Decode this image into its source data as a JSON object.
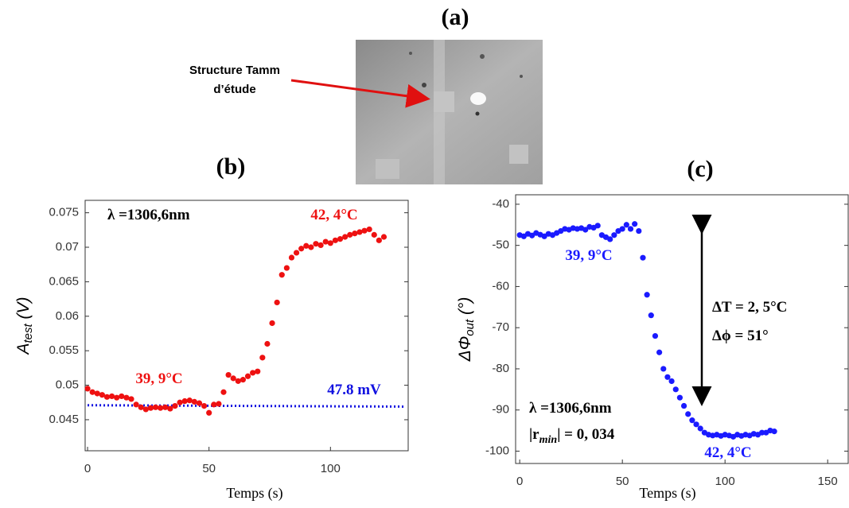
{
  "panel_a": {
    "label": "(a)",
    "caption_lines": [
      "Structure Tamm",
      "d’étude"
    ]
  },
  "chart_data": [
    {
      "type": "scatter",
      "title": "(b)",
      "y_label": {
        "symbol": "A",
        "subscript": "test",
        "unit": " (V)"
      },
      "x_label": "Temps (s)",
      "xlim": [
        -1,
        132
      ],
      "xticks": [
        0,
        50,
        100
      ],
      "ylim": [
        0.0405,
        0.0768
      ],
      "yticks": [
        0.045,
        0.05,
        0.055,
        0.06,
        0.065,
        0.07,
        0.075
      ],
      "series": [
        {
          "color": "#ee1111",
          "x": [
            0,
            2,
            4,
            6,
            8,
            10,
            12,
            14,
            16,
            18,
            20,
            22,
            24,
            26,
            28,
            30,
            32,
            34,
            36,
            38,
            40,
            42,
            44,
            46,
            48,
            50,
            52,
            54,
            56,
            58,
            60,
            62,
            64,
            66,
            68,
            70,
            72,
            74,
            76,
            78,
            80,
            82,
            84,
            86,
            88,
            90,
            92,
            94,
            96,
            98,
            100,
            102,
            104,
            106,
            108,
            110,
            112,
            114,
            116,
            118,
            120,
            122
          ],
          "values": [
            0.0495,
            0.049,
            0.0488,
            0.0486,
            0.0483,
            0.0484,
            0.0482,
            0.0484,
            0.0482,
            0.048,
            0.0472,
            0.0468,
            0.0465,
            0.0467,
            0.0468,
            0.0467,
            0.0468,
            0.0466,
            0.047,
            0.0475,
            0.0477,
            0.0478,
            0.0476,
            0.0474,
            0.047,
            0.046,
            0.0472,
            0.0473,
            0.049,
            0.0515,
            0.051,
            0.0506,
            0.0508,
            0.0513,
            0.0518,
            0.052,
            0.054,
            0.056,
            0.059,
            0.062,
            0.066,
            0.067,
            0.0685,
            0.0692,
            0.0698,
            0.0702,
            0.07,
            0.0705,
            0.0703,
            0.0708,
            0.0706,
            0.071,
            0.0712,
            0.0715,
            0.0718,
            0.072,
            0.0722,
            0.0724,
            0.0726,
            0.0718,
            0.071,
            0.0715
          ]
        }
      ],
      "fit": {
        "color": "#1010e0",
        "x": [
          0,
          131
        ],
        "values": [
          0.0471,
          0.0469
        ]
      },
      "annotations": [
        {
          "text": "λ =1306,6nm",
          "color": "#000000"
        },
        {
          "text": "42, 4°C",
          "color": "#ee1111"
        },
        {
          "text": "39, 9°C",
          "color": "#ee1111"
        },
        {
          "text": "47.8 mV",
          "color": "#1010e0"
        }
      ]
    },
    {
      "type": "scatter",
      "title": "(c)",
      "y_label": {
        "symbol": "ΔΦ",
        "subscript": "out",
        "unit": " (°)"
      },
      "x_label": "Temps (s)",
      "xlim": [
        -2,
        160
      ],
      "xticks": [
        0,
        50,
        100,
        150
      ],
      "ylim": [
        -103,
        -37.7
      ],
      "yticks": [
        -100,
        -90,
        -80,
        -70,
        -60,
        -50,
        -40
      ],
      "series": [
        {
          "color": "#1a1aff",
          "x": [
            0,
            2,
            4,
            6,
            8,
            10,
            12,
            14,
            16,
            18,
            20,
            22,
            24,
            26,
            28,
            30,
            32,
            34,
            36,
            38,
            40,
            42,
            44,
            46,
            48,
            50,
            52,
            54,
            56,
            58,
            60,
            62,
            64,
            66,
            68,
            70,
            72,
            74,
            76,
            78,
            80,
            82,
            84,
            86,
            88,
            90,
            92,
            94,
            96,
            98,
            100,
            102,
            104,
            106,
            108,
            110,
            112,
            114,
            116,
            118,
            120,
            122,
            124
          ],
          "values": [
            -47.5,
            -47.8,
            -47.2,
            -47.6,
            -47,
            -47.4,
            -47.8,
            -47.2,
            -47.5,
            -47,
            -46.5,
            -46,
            -46.2,
            -45.8,
            -46,
            -45.8,
            -46.2,
            -45.5,
            -45.7,
            -45.2,
            -47.5,
            -48,
            -48.5,
            -47.5,
            -46.5,
            -46,
            -45,
            -46,
            -44.8,
            -46.5,
            -53,
            -62,
            -67,
            -72,
            -76,
            -80,
            -82,
            -83,
            -85,
            -87,
            -89,
            -91,
            -92.5,
            -93.5,
            -94.5,
            -95.5,
            -96,
            -96.2,
            -96,
            -96.3,
            -96,
            -96.2,
            -96.5,
            -96,
            -96.3,
            -96,
            -96.2,
            -95.8,
            -96,
            -95.5,
            -95.5,
            -95,
            -95.2
          ]
        }
      ],
      "annotations": [
        {
          "text": "39, 9°C",
          "color": "#1a1aff"
        },
        {
          "text": "ΔT = 2, 5°C",
          "color": "#000000"
        },
        {
          "text": "Δϕ = 51°",
          "color": "#000000"
        },
        {
          "text": "λ =1306,6nm",
          "color": "#000000"
        },
        {
          "text": "|r",
          "subscript": "min",
          "after": "| = 0, 034",
          "color": "#000000"
        },
        {
          "text": "42, 4°C",
          "color": "#1a1aff"
        }
      ]
    }
  ]
}
